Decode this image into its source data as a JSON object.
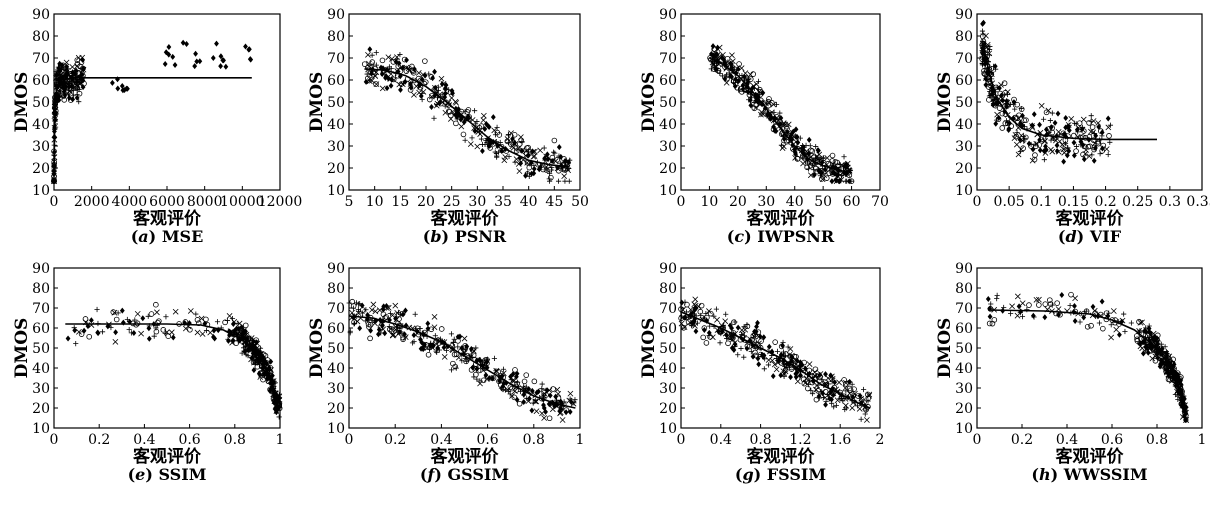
{
  "figure": {
    "background": "#ffffff",
    "ink": "#000000"
  },
  "chart_data": [
    {
      "type": "scatter",
      "caption_letter": "a",
      "caption_name": "MSE",
      "xlabel": "客观评价",
      "ylabel": "DMOS",
      "xlim": [
        0,
        12000
      ],
      "ylim": [
        10,
        90
      ],
      "xticks": [
        0,
        2000,
        4000,
        6000,
        8000,
        10000,
        12000
      ],
      "xtick_labels": [
        "0",
        "2000",
        "4000",
        "6000",
        "8000",
        "10000",
        "12000"
      ],
      "yticks": [
        10,
        20,
        30,
        40,
        50,
        60,
        70,
        80,
        90
      ],
      "fit": [
        [
          0,
          16
        ],
        [
          40,
          45
        ],
        [
          150,
          56
        ],
        [
          400,
          60
        ],
        [
          1000,
          61
        ],
        [
          5000,
          61
        ],
        [
          10500,
          61
        ]
      ],
      "gen": {
        "kind": "mse"
      }
    },
    {
      "type": "scatter",
      "caption_letter": "b",
      "caption_name": "PSNR",
      "xlabel": "客观评价",
      "ylabel": "DMOS",
      "xlim": [
        5,
        50
      ],
      "ylim": [
        10,
        90
      ],
      "xticks": [
        5,
        10,
        15,
        20,
        25,
        30,
        35,
        40,
        45,
        50
      ],
      "xtick_labels": [
        "5",
        "10",
        "15",
        "20",
        "25",
        "30",
        "35",
        "40",
        "45",
        "50"
      ],
      "yticks": [
        10,
        20,
        30,
        40,
        50,
        60,
        70,
        80,
        90
      ],
      "fit": [
        [
          8,
          65
        ],
        [
          12,
          64.5
        ],
        [
          16,
          62
        ],
        [
          20,
          57
        ],
        [
          24,
          50
        ],
        [
          28,
          42
        ],
        [
          32,
          34
        ],
        [
          36,
          28
        ],
        [
          40,
          23.5
        ],
        [
          44,
          21.5
        ],
        [
          48,
          20.5
        ]
      ],
      "gen": {
        "kind": "band",
        "x0": 8,
        "x1": 48,
        "spread": 8,
        "lowBranch": [
          8,
          27,
          56,
          28
        ]
      }
    },
    {
      "type": "scatter",
      "caption_letter": "c",
      "caption_name": "IWPSNR",
      "xlabel": "客观评价",
      "ylabel": "DMOS",
      "xlim": [
        0,
        70
      ],
      "ylim": [
        10,
        90
      ],
      "xticks": [
        0,
        10,
        20,
        30,
        40,
        50,
        60,
        70
      ],
      "xtick_labels": [
        "0",
        "10",
        "20",
        "30",
        "40",
        "50",
        "60",
        "70"
      ],
      "yticks": [
        10,
        20,
        30,
        40,
        50,
        60,
        70,
        80,
        90
      ],
      "fit": [
        [
          10,
          70
        ],
        [
          15,
          67
        ],
        [
          20,
          62
        ],
        [
          25,
          55
        ],
        [
          30,
          47
        ],
        [
          35,
          38
        ],
        [
          40,
          30
        ],
        [
          45,
          24
        ],
        [
          50,
          21
        ],
        [
          55,
          19
        ],
        [
          60,
          18
        ]
      ],
      "gen": {
        "kind": "band",
        "x0": 10,
        "x1": 60,
        "spread": 6
      }
    },
    {
      "type": "scatter",
      "caption_letter": "d",
      "caption_name": "VIF",
      "xlabel": "客观评价",
      "ylabel": "DMOS",
      "xlim": [
        0,
        0.35
      ],
      "ylim": [
        10,
        90
      ],
      "xticks": [
        0,
        0.05,
        0.1,
        0.15,
        0.2,
        0.25,
        0.3,
        0.35
      ],
      "xtick_labels": [
        "0",
        "0.05",
        "0.1",
        "0.15",
        "0.2",
        "0.25",
        "0.3",
        "0.35"
      ],
      "yticks": [
        10,
        20,
        30,
        40,
        50,
        60,
        70,
        80,
        90
      ],
      "fit": [
        [
          0.01,
          75
        ],
        [
          0.02,
          62
        ],
        [
          0.03,
          52
        ],
        [
          0.05,
          43
        ],
        [
          0.07,
          38
        ],
        [
          0.1,
          35
        ],
        [
          0.15,
          33.5
        ],
        [
          0.2,
          33
        ],
        [
          0.28,
          33
        ]
      ],
      "gen": {
        "kind": "vif"
      }
    },
    {
      "type": "scatter",
      "caption_letter": "e",
      "caption_name": "SSIM",
      "xlabel": "客观评价",
      "ylabel": "DMOS",
      "xlim": [
        0,
        1
      ],
      "ylim": [
        10,
        90
      ],
      "xticks": [
        0,
        0.2,
        0.4,
        0.6,
        0.8,
        1
      ],
      "xtick_labels": [
        "0",
        "0.2",
        "0.4",
        "0.6",
        "0.8",
        "1"
      ],
      "yticks": [
        10,
        20,
        30,
        40,
        50,
        60,
        70,
        80,
        90
      ],
      "fit": [
        [
          0.05,
          62
        ],
        [
          0.3,
          62
        ],
        [
          0.5,
          62
        ],
        [
          0.65,
          61.5
        ],
        [
          0.75,
          59
        ],
        [
          0.85,
          53
        ],
        [
          0.9,
          47
        ],
        [
          0.95,
          37
        ],
        [
          0.99,
          22
        ]
      ],
      "gen": {
        "kind": "ssim",
        "x0": 0.05,
        "cut": 0.75,
        "x1": 1
      }
    },
    {
      "type": "scatter",
      "caption_letter": "f",
      "caption_name": "GSSIM",
      "xlabel": "客观评价",
      "ylabel": "DMOS",
      "xlim": [
        0,
        1
      ],
      "ylim": [
        10,
        90
      ],
      "xticks": [
        0,
        0.2,
        0.4,
        0.6,
        0.8,
        1
      ],
      "xtick_labels": [
        "0",
        "0.2",
        "0.4",
        "0.6",
        "0.8",
        "1"
      ],
      "yticks": [
        10,
        20,
        30,
        40,
        50,
        60,
        70,
        80,
        90
      ],
      "fit": [
        [
          0,
          66
        ],
        [
          0.1,
          65
        ],
        [
          0.2,
          62
        ],
        [
          0.3,
          58
        ],
        [
          0.4,
          53
        ],
        [
          0.5,
          46
        ],
        [
          0.6,
          39
        ],
        [
          0.7,
          32
        ],
        [
          0.8,
          26
        ],
        [
          0.9,
          22
        ],
        [
          0.98,
          20
        ]
      ],
      "gen": {
        "kind": "band",
        "x0": 0,
        "x1": 0.98,
        "spread": 8
      }
    },
    {
      "type": "scatter",
      "caption_letter": "g",
      "caption_name": "FSSIM",
      "xlabel": "客观评价",
      "ylabel": "DMOS",
      "xlim": [
        0,
        2
      ],
      "ylim": [
        10,
        90
      ],
      "xticks": [
        0,
        0.4,
        0.8,
        1.2,
        1.6,
        2
      ],
      "xtick_labels": [
        "0",
        "0.4",
        "0.8",
        "1.2",
        "1.6",
        "2"
      ],
      "yticks": [
        10,
        20,
        30,
        40,
        50,
        60,
        70,
        80,
        90
      ],
      "fit": [
        [
          0,
          68
        ],
        [
          0.2,
          64
        ],
        [
          0.4,
          60
        ],
        [
          0.6,
          55
        ],
        [
          0.8,
          50
        ],
        [
          1.0,
          45
        ],
        [
          1.2,
          39
        ],
        [
          1.4,
          32
        ],
        [
          1.6,
          27
        ],
        [
          1.8,
          22
        ],
        [
          1.9,
          20
        ]
      ],
      "gen": {
        "kind": "band",
        "x0": 0,
        "x1": 1.9,
        "spread": 8
      }
    },
    {
      "type": "scatter",
      "caption_letter": "h",
      "caption_name": "WWSSIM",
      "xlabel": "客观评价",
      "ylabel": "DMOS",
      "xlim": [
        0,
        1
      ],
      "ylim": [
        10,
        90
      ],
      "xticks": [
        0,
        0.2,
        0.4,
        0.6,
        0.8,
        1
      ],
      "xtick_labels": [
        "0",
        "0.2",
        "0.4",
        "0.6",
        "0.8",
        "1"
      ],
      "yticks": [
        10,
        20,
        30,
        40,
        50,
        60,
        70,
        80,
        90
      ],
      "fit": [
        [
          0.05,
          69
        ],
        [
          0.3,
          68.5
        ],
        [
          0.5,
          67
        ],
        [
          0.6,
          64
        ],
        [
          0.7,
          59
        ],
        [
          0.8,
          50
        ],
        [
          0.85,
          42
        ],
        [
          0.9,
          30
        ],
        [
          0.93,
          14
        ]
      ],
      "gen": {
        "kind": "ssim",
        "x0": 0.05,
        "cut": 0.7,
        "x1": 0.93
      }
    }
  ]
}
